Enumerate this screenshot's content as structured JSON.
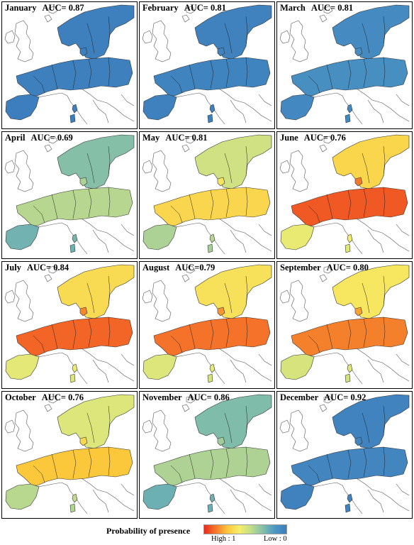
{
  "legend": {
    "title": "Probability of presence",
    "high_label": "High : 1",
    "low_label": "Low : 0",
    "ramp_colors": [
      "#e82a1c",
      "#f57a2a",
      "#fbc83c",
      "#f5ee6a",
      "#c0dd8c",
      "#82bfa8",
      "#4e98c4",
      "#3c7dbd"
    ]
  },
  "panels": [
    {
      "month": "January",
      "auc": "AUC= 0.87",
      "presence_level": 0.02
    },
    {
      "month": "February",
      "auc": "AUC= 0.81",
      "presence_level": 0.04
    },
    {
      "month": "March",
      "auc": "AUC= 0.81",
      "presence_level": 0.1
    },
    {
      "month": "April",
      "auc": "AUC= 0.69",
      "presence_level": 0.42
    },
    {
      "month": "May",
      "auc": "AUC= 0.81",
      "presence_level": 0.62
    },
    {
      "month": "June",
      "auc": "AUC= 0.76",
      "presence_level": 0.82
    },
    {
      "month": "July",
      "auc": "AUC= 0.84",
      "presence_level": 0.8
    },
    {
      "month": "August",
      "auc": "AUC=0.79",
      "presence_level": 0.78
    },
    {
      "month": "September",
      "auc": "AUC= 0.80",
      "presence_level": 0.76
    },
    {
      "month": "October",
      "auc": "AUC= 0.76",
      "presence_level": 0.66
    },
    {
      "month": "November",
      "auc": "AUC= 0.86",
      "presence_level": 0.4
    },
    {
      "month": "December",
      "auc": "AUC= 0.92",
      "presence_level": 0.05
    }
  ]
}
